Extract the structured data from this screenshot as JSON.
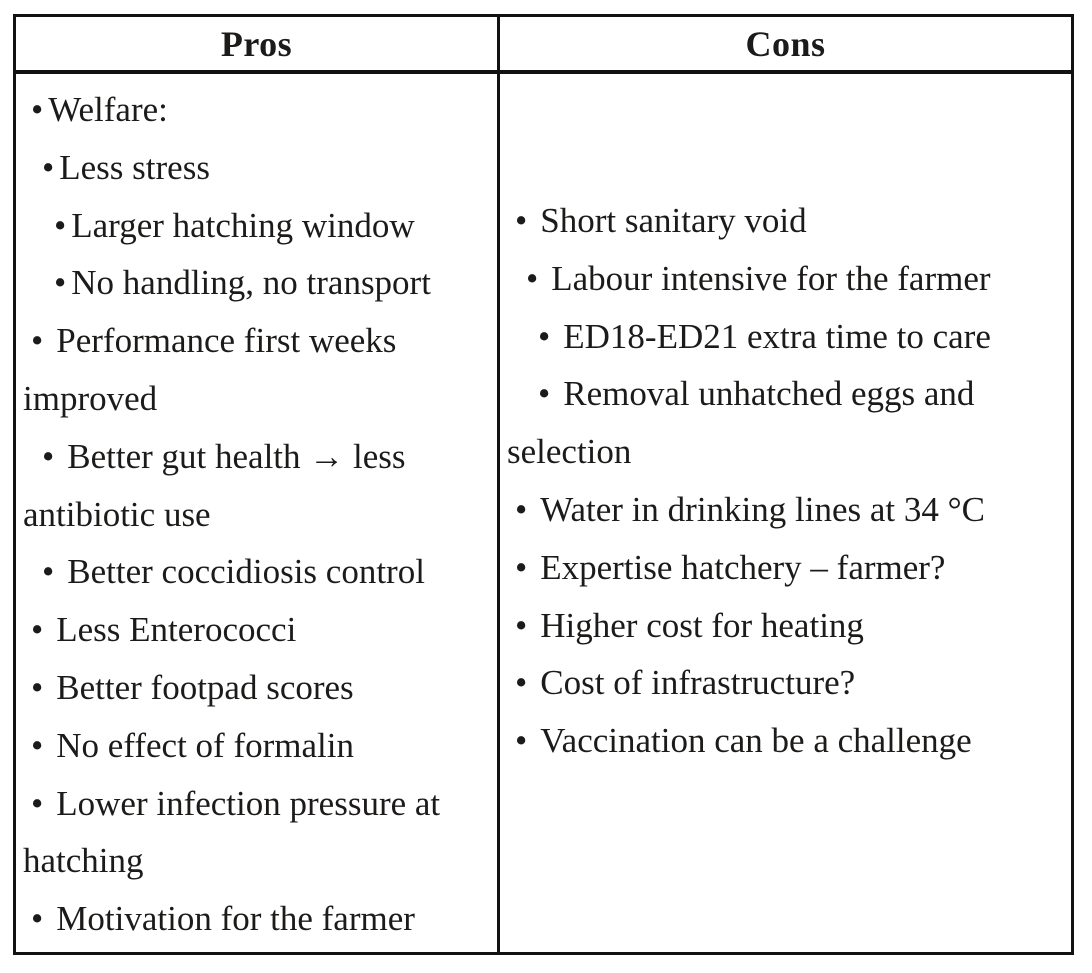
{
  "table": {
    "bullet_char": "•",
    "columns": [
      {
        "header": "Pros",
        "items": [
          {
            "text": "Welfare:",
            "level": 0,
            "tight": true
          },
          {
            "text": "Less stress",
            "level": 1,
            "tight": true
          },
          {
            "text": "Larger hatching window",
            "level": 2,
            "tight": true
          },
          {
            "text": "No handling, no transport",
            "level": 2,
            "tight": true
          },
          {
            "text": "Performance first weeks improved",
            "level": 0,
            "tight": false
          },
          {
            "text": "Better gut health → less antibiotic use",
            "level": 1,
            "tight": false
          },
          {
            "text": "Better coccidiosis control",
            "level": 1,
            "tight": false
          },
          {
            "text": "Less Enterococci",
            "level": 0,
            "tight": false
          },
          {
            "text": "Better footpad scores",
            "level": 0,
            "tight": false
          },
          {
            "text": "No effect of formalin",
            "level": 0,
            "tight": false
          },
          {
            "text": "Lower infection pressure at hatching",
            "level": 0,
            "tight": false
          },
          {
            "text": "Motivation for the farmer",
            "level": 0,
            "tight": false
          }
        ]
      },
      {
        "header": "Cons",
        "items": [
          {
            "text": "Short sanitary void",
            "level": 0,
            "tight": false
          },
          {
            "text": "Labour intensive for the farmer",
            "level": 1,
            "tight": false
          },
          {
            "text": "ED18-ED21 extra time to care",
            "level": 2,
            "tight": false
          },
          {
            "text": "Removal unhatched eggs and selection",
            "level": 2,
            "tight": false
          },
          {
            "text": "Water in drinking lines at 34 °C",
            "level": 0,
            "tight": false
          },
          {
            "text": "Expertise hatchery – farmer?",
            "level": 0,
            "tight": false
          },
          {
            "text": "Higher cost for heating",
            "level": 0,
            "tight": false
          },
          {
            "text": "Cost of infrastructure?",
            "level": 0,
            "tight": false
          },
          {
            "text": "Vaccination can be a challenge",
            "level": 0,
            "tight": false
          }
        ]
      }
    ]
  },
  "colors": {
    "border": "#121212",
    "text": "#1c1b1a",
    "background": "#ffffff"
  }
}
